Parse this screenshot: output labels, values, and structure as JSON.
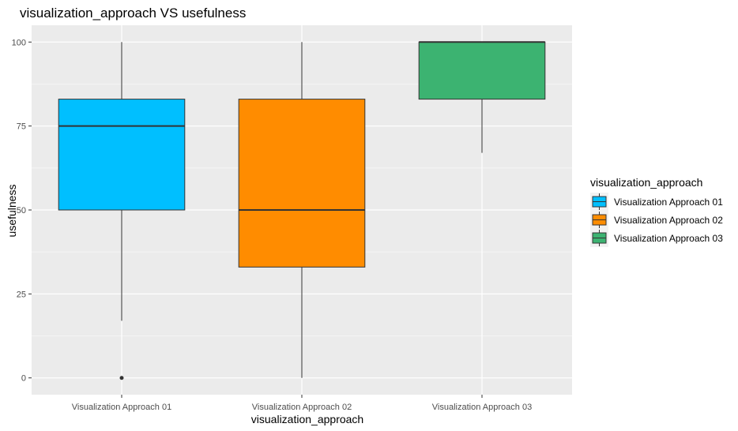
{
  "chart_data": {
    "type": "box",
    "title": "visualization_approach VS usefulness",
    "xlabel": "visualization_approach",
    "ylabel": "usefulness",
    "ylim": [
      -5,
      105
    ],
    "yticks": [
      0,
      25,
      50,
      75,
      100
    ],
    "grid": true,
    "legend": {
      "title": "visualization_approach",
      "position": "right"
    },
    "categories": [
      "Visualization Approach 01",
      "Visualization Approach 02",
      "Visualization Approach 03"
    ],
    "boxes": [
      {
        "name": "Visualization Approach 01",
        "whisker_low": 17,
        "q1": 50,
        "median": 75,
        "q3": 83,
        "whisker_high": 100,
        "outliers": [
          0
        ],
        "color": "#00BFFF"
      },
      {
        "name": "Visualization Approach 02",
        "whisker_low": 0,
        "q1": 33,
        "median": 50,
        "q3": 83,
        "whisker_high": 100,
        "outliers": [],
        "color": "#FF8C00"
      },
      {
        "name": "Visualization Approach 03",
        "whisker_low": 67,
        "q1": 83,
        "median": 100,
        "q3": 100,
        "whisker_high": 100,
        "outliers": [],
        "color": "#3CB371"
      }
    ]
  },
  "colors": {
    "panel_background": "#EBEBEB",
    "grid_major": "#FFFFFF",
    "box_outline": "#333333"
  }
}
